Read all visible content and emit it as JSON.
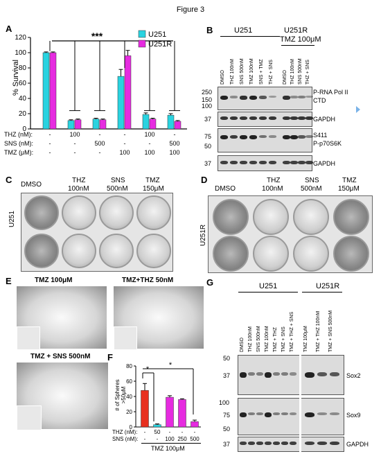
{
  "figure_title": "Figure 3",
  "panels": [
    "A",
    "B",
    "C",
    "D",
    "E",
    "F",
    "G"
  ],
  "panel_a": {
    "significance": "***",
    "legend": [
      "U251",
      "U251R"
    ],
    "row_labels": [
      "THZ (nM):",
      "SNS (nM):",
      "TMZ (μM):"
    ],
    "row_values": [
      [
        "-",
        "100",
        "-",
        "-",
        "100",
        "-"
      ],
      [
        "-",
        "-",
        "500",
        "-",
        "-",
        "500"
      ],
      [
        "-",
        "-",
        "-",
        "100",
        "100",
        "100"
      ]
    ]
  },
  "panel_b": {
    "group1": "U251",
    "group2_line1": "U251R",
    "group2_line2": "TMZ 100μM",
    "lanes1": [
      "DMSO",
      "THZ 100nM",
      "SNS 500nM",
      "TMZ 100nM",
      "SNS + TMZ",
      "THZ + SNS"
    ],
    "lanes2": [
      "DMSO",
      "THZ 100nM",
      "SNS 500nM",
      "THZ + SNS"
    ],
    "mw": [
      "250",
      "150",
      "100",
      "37",
      "75",
      "50",
      "37"
    ],
    "labels": [
      "P-RNA Pol II",
      "CTD",
      "GAPDH",
      "S411",
      "P-p70S6K",
      "GAPDH"
    ]
  },
  "panel_c": {
    "headers": [
      "DMSO",
      "THZ",
      "SNS",
      "TMZ"
    ],
    "subheaders": [
      "100nM",
      "500nM",
      "150μM"
    ],
    "row_label": "U251"
  },
  "panel_d": {
    "headers": [
      "DMSO",
      "THZ",
      "SNS",
      "TMZ"
    ],
    "subheaders": [
      "100nM",
      "500nM",
      "150μM"
    ],
    "row_label": "U251R"
  },
  "panel_e": {
    "labels": [
      "TMZ 100μM",
      "TMZ+THZ 50nM",
      "TMZ + SNS 500nM"
    ]
  },
  "panel_g": {
    "group1": "U251",
    "group2": "U251R",
    "lanes1": [
      "DMSO",
      "THZ 100nM",
      "SNS 500nM",
      "TMZ 100nM",
      "TMZ + THZ",
      "TMZ + SNS",
      "TMZ + THZ + SNS"
    ],
    "lanes2": [
      "TMZ 100μM",
      "TMZ + THZ 100nM",
      "TMZ + SNS 500nM"
    ],
    "mw": [
      "50",
      "37",
      "100",
      "75",
      "50",
      "37"
    ],
    "labels": [
      "Sox2",
      "Sox9",
      "GAPDH"
    ]
  },
  "chart_data": [
    {
      "type": "bar",
      "panel": "A",
      "ylabel": "% Survival",
      "ylim": [
        0,
        120
      ],
      "yticks": [
        0,
        20,
        40,
        60,
        80,
        100,
        120
      ],
      "grid": false,
      "legend_position": "top-right",
      "categories": [
        "1",
        "2",
        "3",
        "4",
        "5",
        "6"
      ],
      "series": [
        {
          "name": "U251",
          "color": "#29d3e0",
          "values": [
            100,
            11,
            13,
            69,
            19,
            18
          ],
          "errors": [
            1,
            1,
            1,
            9,
            2,
            2
          ]
        },
        {
          "name": "U251R",
          "color": "#e62be0",
          "values": [
            100,
            12,
            12,
            96,
            13,
            10
          ],
          "errors": [
            1,
            1,
            1,
            7,
            1,
            1
          ]
        }
      ]
    },
    {
      "type": "bar",
      "panel": "F",
      "ylabel": "# of Spheres >50μM",
      "ylim": [
        0,
        80
      ],
      "yticks": [
        0,
        20,
        40,
        60,
        80
      ],
      "row_labels": [
        "THZ (nM):",
        "SNS (nM):"
      ],
      "row_values": [
        [
          "-",
          "50",
          "-",
          "-",
          "-"
        ],
        [
          "-",
          "-",
          "100",
          "250",
          "500"
        ]
      ],
      "xlabel": "TMZ 100μM",
      "significance": [
        "*",
        "*"
      ],
      "categories": [
        "1",
        "2",
        "3",
        "4",
        "5"
      ],
      "values": [
        48,
        3,
        39,
        36,
        7
      ],
      "errors": [
        9,
        1,
        2,
        1,
        2
      ],
      "colors": [
        "#e8301f",
        "#29d3e0",
        "#e62be0",
        "#e62be0",
        "#e62be0"
      ]
    }
  ]
}
